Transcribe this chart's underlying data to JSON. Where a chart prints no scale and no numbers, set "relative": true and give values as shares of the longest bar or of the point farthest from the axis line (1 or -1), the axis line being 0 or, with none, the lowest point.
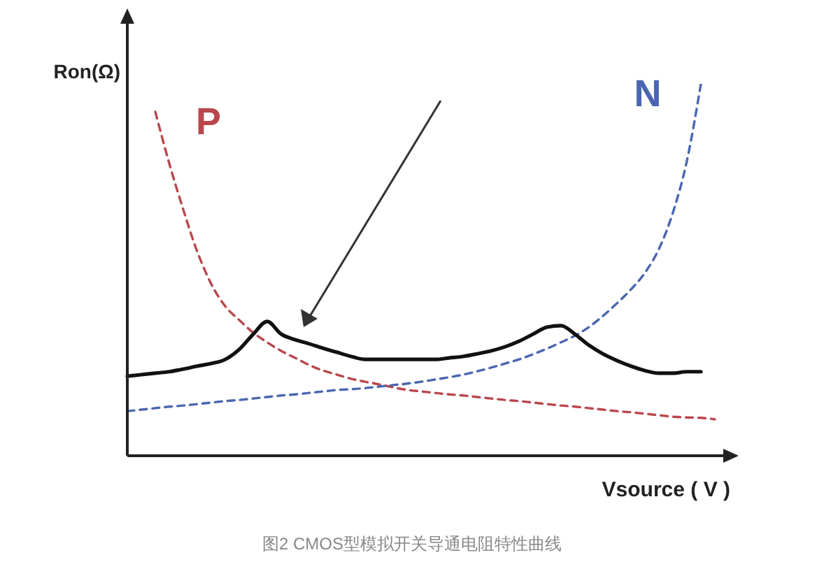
{
  "chart_data": {
    "type": "line",
    "relative": true,
    "xlabel": "Vsource ( V )",
    "ylabel": "Ron(Ω)",
    "annotations": [
      "图2 CMOS型模拟开关导通电阻特性曲线"
    ],
    "marker": "none",
    "categories": [
      null,
      null,
      null,
      null,
      null,
      null,
      null,
      null,
      null,
      null,
      null,
      null,
      null,
      null,
      null,
      null,
      null,
      null,
      null,
      null,
      null,
      null,
      null,
      null,
      null,
      null,
      null,
      null,
      null,
      null,
      null,
      null,
      null,
      null,
      null,
      null,
      null,
      null,
      null,
      null,
      null,
      null,
      null
    ],
    "series": [
      {
        "name": "P",
        "color": "#b9474d",
        "line_style": "dashed",
        "values": [
          null,
          null,
          0.925,
          0.786,
          0.662,
          0.549,
          0.462,
          0.402,
          0.365,
          0.331,
          0.305,
          0.282,
          0.263,
          0.244,
          0.229,
          0.218,
          0.207,
          0.199,
          0.192,
          0.184,
          0.177,
          0.173,
          0.169,
          0.165,
          0.162,
          0.158,
          0.154,
          0.15,
          0.147,
          0.143,
          0.139,
          0.135,
          0.132,
          0.128,
          0.124,
          0.12,
          0.117,
          0.113,
          0.109,
          0.105,
          0.103,
          0.102,
          0.098
        ]
      },
      {
        "name": "N",
        "color": "#4a66b0",
        "line_style": "dashed",
        "values": [
          0.12,
          0.124,
          0.128,
          0.132,
          0.135,
          0.139,
          0.143,
          0.147,
          0.15,
          0.154,
          0.158,
          0.162,
          0.165,
          0.169,
          0.173,
          0.177,
          0.179,
          0.182,
          0.186,
          0.19,
          0.194,
          0.199,
          0.205,
          0.211,
          0.218,
          0.227,
          0.237,
          0.248,
          0.259,
          0.273,
          0.288,
          0.305,
          0.323,
          0.346,
          0.376,
          0.41,
          0.447,
          0.492,
          0.556,
          0.654,
          0.793,
          1,
          null
        ]
      },
      {
        "color": "#111111",
        "line_style": "solid",
        "values": [
          0.214,
          0.218,
          0.222,
          0.226,
          0.233,
          0.241,
          0.248,
          0.259,
          0.286,
          0.327,
          0.361,
          0.327,
          0.312,
          0.301,
          0.289,
          0.278,
          0.267,
          0.259,
          0.259,
          0.259,
          0.259,
          0.259,
          0.259,
          0.263,
          0.267,
          0.274,
          0.282,
          0.293,
          0.308,
          0.327,
          0.346,
          0.35,
          0.327,
          0.297,
          0.274,
          0.256,
          0.241,
          0.229,
          0.222,
          0.222,
          0.226,
          0.226,
          null
        ]
      }
    ]
  }
}
